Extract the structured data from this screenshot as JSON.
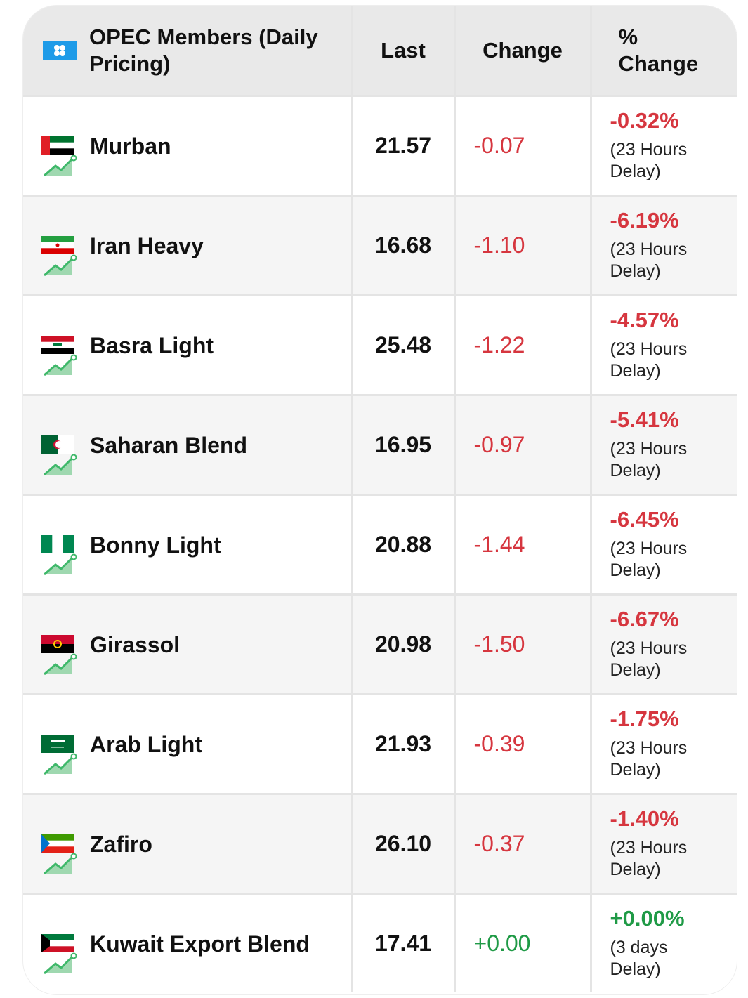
{
  "header": {
    "title_line1": "OPEC Members (Daily",
    "title_line2": "Pricing)",
    "col_last": "Last",
    "col_change": "Change",
    "col_pct_line1": "%",
    "col_pct_line2": "Change"
  },
  "colors": {
    "negative": "#d6363f",
    "positive": "#1f9a46",
    "header_bg": "#e9e9e9"
  },
  "rows": [
    {
      "name": "Murban",
      "last": "21.57",
      "change": "-0.07",
      "pct": "-0.32%",
      "delay1": "(23 Hours",
      "delay2": "Delay)",
      "flag": "uae-flag"
    },
    {
      "name": "Iran Heavy",
      "last": "16.68",
      "change": "-1.10",
      "pct": "-6.19%",
      "delay1": "(23 Hours",
      "delay2": "Delay)",
      "flag": "iran-flag"
    },
    {
      "name": "Basra Light",
      "last": "25.48",
      "change": "-1.22",
      "pct": "-4.57%",
      "delay1": "(23 Hours",
      "delay2": "Delay)",
      "flag": "iraq-flag"
    },
    {
      "name": "Saharan Blend",
      "last": "16.95",
      "change": "-0.97",
      "pct": "-5.41%",
      "delay1": "(23 Hours",
      "delay2": "Delay)",
      "flag": "algeria-flag"
    },
    {
      "name": "Bonny Light",
      "last": "20.88",
      "change": "-1.44",
      "pct": "-6.45%",
      "delay1": "(23 Hours",
      "delay2": "Delay)",
      "flag": "nigeria-flag"
    },
    {
      "name": "Girassol",
      "last": "20.98",
      "change": "-1.50",
      "pct": "-6.67%",
      "delay1": "(23 Hours",
      "delay2": "Delay)",
      "flag": "angola-flag"
    },
    {
      "name": "Arab Light",
      "last": "21.93",
      "change": "-0.39",
      "pct": "-1.75%",
      "delay1": "(23 Hours",
      "delay2": "Delay)",
      "flag": "saudi-flag"
    },
    {
      "name": "Zafiro",
      "last": "26.10",
      "change": "-0.37",
      "pct": "-1.40%",
      "delay1": "(23 Hours",
      "delay2": "Delay)",
      "flag": "equatorial-guinea-flag"
    },
    {
      "name": "Kuwait Export Blend",
      "last": "17.41",
      "change": "+0.00",
      "pct": "+0.00%",
      "delay1": "(3 days",
      "delay2": "Delay)",
      "flag": "kuwait-flag"
    }
  ]
}
